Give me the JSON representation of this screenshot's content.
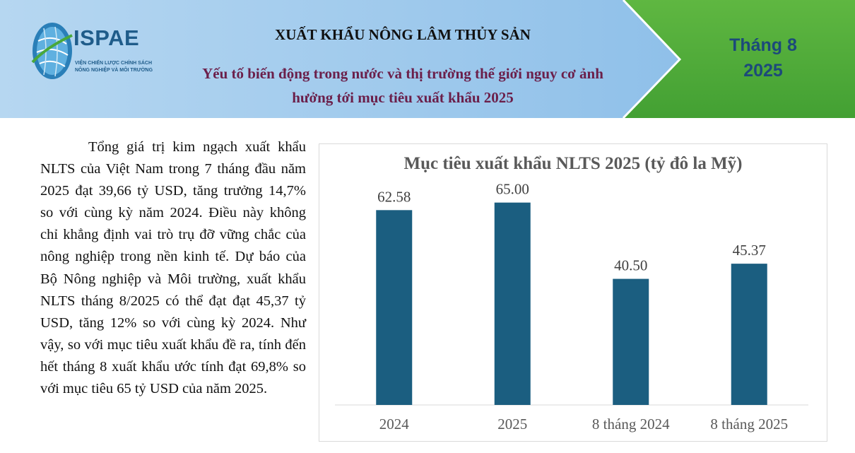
{
  "header": {
    "logo_text": "ISPAE",
    "logo_sub_1": "VIỆN CHIẾN LƯỢC CHÍNH SÁCH",
    "logo_sub_2": "NÔNG NGHIỆP VÀ MÔI TRƯỜNG",
    "title": "XUẤT KHẨU NÔNG LÂM THỦY SẢN",
    "subtitle_1": "Yếu tố biến động trong nước và thị trường thế giới nguy cơ ảnh",
    "subtitle_2": "hưởng tới mục tiêu xuất khẩu 2025",
    "month_1": "Tháng 8",
    "month_2": "2025"
  },
  "body": {
    "paragraph": "Tổng giá trị kim ngạch xuất khẩu NLTS của Việt Nam trong 7 tháng đầu năm 2025 đạt 39,66 tỷ USD, tăng trưởng 14,7% so với cùng kỳ năm 2024. Điều này không chỉ khẳng định vai trò trụ đỡ vững chắc của nông nghiệp trong nền kinh tế. Dự báo của Bộ Nông nghiệp và Môi trường, xuất khẩu NLTS tháng 8/2025 có thể đạt đạt 45,37 tỷ USD, tăng 12% so với cùng kỳ 2024. Như vậy, so với mục tiêu xuất khẩu đề ra, tính đến hết tháng 8 xuất khẩu ước tính đạt 69,8% so với mục tiêu 65 tỷ USD của năm 2025."
  },
  "colors": {
    "header_blue": "#9cc6e8",
    "header_green": "#4ea93a",
    "bar": "#1b5e80",
    "subtitle": "#6b1f4a"
  },
  "chart_data": {
    "type": "bar",
    "title": "Mục tiêu xuất khẩu NLTS 2025 (tỷ đô la Mỹ)",
    "categories": [
      "2024",
      "2025",
      "8 tháng 2024",
      "8 tháng 2025"
    ],
    "values": [
      62.58,
      65.0,
      40.5,
      45.37
    ],
    "value_labels": [
      "62.58",
      "65.00",
      "40.50",
      "45.37"
    ],
    "ylim": [
      0,
      74
    ],
    "grid": false,
    "legend": "none"
  }
}
